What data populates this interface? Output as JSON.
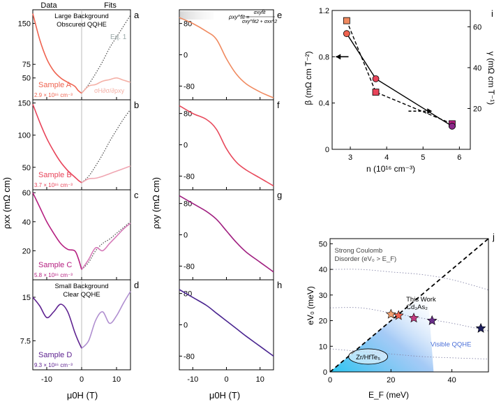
{
  "chart_data": [
    {
      "type": "line",
      "title": "Longitudinal resistivity rho_xx vs magnetic field (panels a-d)",
      "ylabel": "ρxx (mΩ cm)",
      "xlabel": "μ0H (T)",
      "xlim": [
        -14,
        14
      ],
      "x_ticks": [
        -10,
        0,
        10
      ],
      "header_left": "Data",
      "header_right": "Fits",
      "panels": [
        {
          "letter": "a",
          "sample": "Sample A",
          "density": "2.9 × 10¹⁶ cm⁻³",
          "ylim": [
            10,
            175
          ],
          "y_ticks": [
            50,
            75,
            150
          ],
          "annotation": "Large Background\nObscured QQHE",
          "fit_label": "Eq. 1",
          "fit_label2": "σH∂σ/∂ρxy",
          "series": [
            {
              "name": "data",
              "color": "#ef6350",
              "x": [
                -14,
                -12,
                -10,
                -8,
                -6,
                -4,
                -2,
                -1,
                0
              ],
              "y": [
                168,
                120,
                85,
                63,
                50,
                42,
                35,
                27,
                22
              ]
            },
            {
              "name": "Eq. 1",
              "color": "#555555",
              "style": "dotted",
              "x": [
                0,
                2,
                4,
                6,
                8,
                10,
                12,
                14
              ],
              "y": [
                22,
                38,
                58,
                80,
                105,
                125,
                145,
                165
              ]
            },
            {
              "name": "fit",
              "color": "#f4b0a6",
              "x": [
                0,
                2,
                4,
                6,
                8,
                10,
                12,
                14
              ],
              "y": [
                22,
                35,
                38,
                44,
                47,
                50,
                46,
                42
              ]
            }
          ]
        },
        {
          "letter": "b",
          "sample": "Sample B",
          "density": "3.7 × 10¹⁶ cm⁻³",
          "ylim": [
            15,
            155
          ],
          "y_ticks": [
            50,
            100,
            150
          ],
          "series": [
            {
              "name": "data",
              "color": "#e8445a",
              "x": [
                -14,
                -12,
                -10,
                -8,
                -6,
                -4,
                -2,
                -1,
                0
              ],
              "y": [
                148,
                120,
                95,
                75,
                58,
                45,
                35,
                30,
                26
              ]
            },
            {
              "name": "Eq. 1",
              "color": "#555555",
              "style": "dotted",
              "x": [
                0,
                2,
                4,
                6,
                8,
                10,
                12,
                14
              ],
              "y": [
                26,
                36,
                52,
                70,
                90,
                108,
                125,
                140
              ]
            },
            {
              "name": "fit",
              "color": "#f0a6b2",
              "x": [
                0,
                2,
                4,
                6,
                8,
                10,
                12,
                14
              ],
              "y": [
                26,
                32,
                33,
                36,
                40,
                44,
                48,
                52
              ]
            }
          ]
        },
        {
          "letter": "c",
          "sample": "Sample C",
          "density": "5.8 × 10¹⁶ cm⁻³",
          "ylim": [
            0,
            62
          ],
          "y_ticks": [
            20,
            40,
            60
          ],
          "series": [
            {
              "name": "data",
              "color": "#b51f80",
              "x": [
                -14,
                -12,
                -10,
                -8,
                -6,
                -4,
                -2,
                -1,
                0
              ],
              "y": [
                60,
                50,
                40,
                32,
                25,
                21,
                20,
                15,
                7
              ]
            },
            {
              "name": "Eq. 1",
              "color": "#555555",
              "style": "dotted",
              "x": [
                0,
                2,
                4,
                6,
                8,
                10,
                12,
                14
              ],
              "y": [
                7,
                12,
                20,
                25,
                28,
                32,
                36,
                40
              ]
            },
            {
              "name": "fit",
              "color": "#d67ab8",
              "x": [
                0,
                2,
                4,
                6,
                8,
                10,
                12,
                14
              ],
              "y": [
                7,
                14,
                22,
                20,
                25,
                30,
                35,
                39
              ]
            }
          ]
        },
        {
          "letter": "d",
          "sample": "Sample D",
          "density": "9.3 × 10¹⁶ cm⁻³",
          "ylim": [
            2.5,
            18
          ],
          "y_ticks": [
            7.5,
            15
          ],
          "annotation": "Small Background\nClear QQHE",
          "series": [
            {
              "name": "data",
              "color": "#5e2290",
              "x": [
                -14,
                -12,
                -10,
                -8,
                -6,
                -4,
                -2,
                -1,
                0
              ],
              "y": [
                15,
                13.5,
                11.5,
                12.5,
                13.8,
                12.5,
                9,
                7.5,
                6.2
              ]
            },
            {
              "name": "fit",
              "color": "#b08fd0",
              "x": [
                0,
                2,
                4,
                6,
                8,
                10,
                12,
                14
              ],
              "y": [
                6.2,
                7.5,
                11,
                12.5,
                10.5,
                11.8,
                14,
                16
              ]
            }
          ]
        }
      ]
    },
    {
      "type": "line",
      "title": "Hall resistivity rho_xy vs magnetic field (panels e-h)",
      "ylabel": "ρxy (mΩ cm)",
      "xlabel": "μ0H (T)",
      "xlim": [
        -14,
        14
      ],
      "x_ticks": [
        -10,
        0,
        10
      ],
      "y_ticks": [
        80,
        0,
        -80
      ],
      "formula_lhs": "ρxy^fit =",
      "formula_num": "σxyfit",
      "formula_den": "σxy^fit2 + σxx^2",
      "panels": [
        {
          "letter": "e",
          "ylim": [
            -115,
            115
          ],
          "series": [
            {
              "name": "data",
              "color": "#f08a60",
              "x": [
                -14,
                -10,
                -6,
                -3,
                0,
                3,
                6,
                10,
                14
              ],
              "y": [
                95,
                80,
                60,
                40,
                -10,
                -50,
                -75,
                -95,
                -110
              ]
            }
          ]
        },
        {
          "letter": "f",
          "ylim": [
            -115,
            115
          ],
          "series": [
            {
              "name": "data",
              "color": "#e84a5c",
              "x": [
                -14,
                -10,
                -6,
                -3,
                0,
                3,
                6,
                10,
                14
              ],
              "y": [
                100,
                80,
                65,
                40,
                -10,
                -45,
                -65,
                -85,
                -105
              ]
            }
          ]
        },
        {
          "letter": "g",
          "ylim": [
            -115,
            115
          ],
          "series": [
            {
              "name": "data",
              "color": "#a01f80",
              "x": [
                -14,
                -10,
                -6,
                -3,
                0,
                3,
                6,
                10,
                14
              ],
              "y": [
                100,
                80,
                60,
                40,
                10,
                -20,
                -45,
                -70,
                -95
              ]
            }
          ]
        },
        {
          "letter": "h",
          "ylim": [
            -115,
            115
          ],
          "series": [
            {
              "name": "data",
              "color": "#4a2590",
              "x": [
                -14,
                -10,
                -6,
                -3,
                0,
                3,
                6,
                10,
                14
              ],
              "y": [
                90,
                70,
                50,
                30,
                10,
                -10,
                -30,
                -55,
                -80
              ]
            }
          ]
        }
      ]
    },
    {
      "type": "scatter",
      "letter": "i",
      "xlabel": "n (10¹⁶ cm⁻³)",
      "ylabel": "β (mΩ cm T⁻²)",
      "ylabel_right": "γ (mΩ cm T⁻¹)",
      "xlim": [
        2.5,
        6.3
      ],
      "ylim": [
        0,
        1.2
      ],
      "ylim_right": [
        0,
        68
      ],
      "x_ticks": [
        3,
        4,
        5,
        6
      ],
      "y_ticks": [
        0,
        0.4,
        0.8,
        1.2
      ],
      "y_ticks_right": [
        20,
        40,
        60
      ],
      "series": [
        {
          "name": "β (circles, solid line)",
          "axis": "left",
          "marker": "circle",
          "x": [
            2.9,
            3.7,
            5.8
          ],
          "y": [
            1.0,
            0.61,
            0.2
          ],
          "colors": [
            "#ef6350",
            "#e8445a",
            "#8b2a8a"
          ]
        },
        {
          "name": "γ (squares, dashed line)",
          "axis": "right",
          "marker": "square",
          "x": [
            2.9,
            3.7,
            5.8
          ],
          "y": [
            63,
            28,
            12.5
          ],
          "colors": [
            "#f08a60",
            "#e8445a",
            "#b51f80"
          ]
        }
      ]
    },
    {
      "type": "scatter",
      "letter": "j",
      "xlabel": "E_F (meV)",
      "ylabel": "eV₀ (meV)",
      "xlim": [
        0,
        52
      ],
      "ylim": [
        0,
        52
      ],
      "x_ticks": [
        0,
        20,
        40
      ],
      "y_ticks": [
        0,
        10,
        20,
        30,
        40,
        50
      ],
      "region_upper": "Strong Coulomb\nDisorder (eV₀ > E_F)",
      "region_lower": "Visible QQHE",
      "this_work": "This Work\nCd₃As₂",
      "ellipse_label": "Zr/HfTe₅",
      "series": [
        {
          "name": "stars",
          "x": [
            20,
            22.5,
            27.5,
            33.5,
            49.5
          ],
          "y": [
            22.5,
            22,
            21,
            20,
            17
          ],
          "colors": [
            "#f4a070",
            "#ef6350",
            "#c23a80",
            "#6a2d8a",
            "#1e1f5e"
          ]
        }
      ],
      "dotted_curves": [
        {
          "x": [
            0,
            10,
            20,
            30,
            40,
            52
          ],
          "y": [
            40,
            40,
            39,
            38,
            36,
            32
          ]
        },
        {
          "x": [
            0,
            10,
            20,
            30,
            40,
            52
          ],
          "y": [
            25,
            25,
            23,
            21,
            19,
            16
          ]
        },
        {
          "x": [
            0,
            10,
            20,
            30,
            40,
            52
          ],
          "y": [
            9,
            8,
            7,
            6,
            5.5,
            5
          ]
        }
      ]
    }
  ]
}
